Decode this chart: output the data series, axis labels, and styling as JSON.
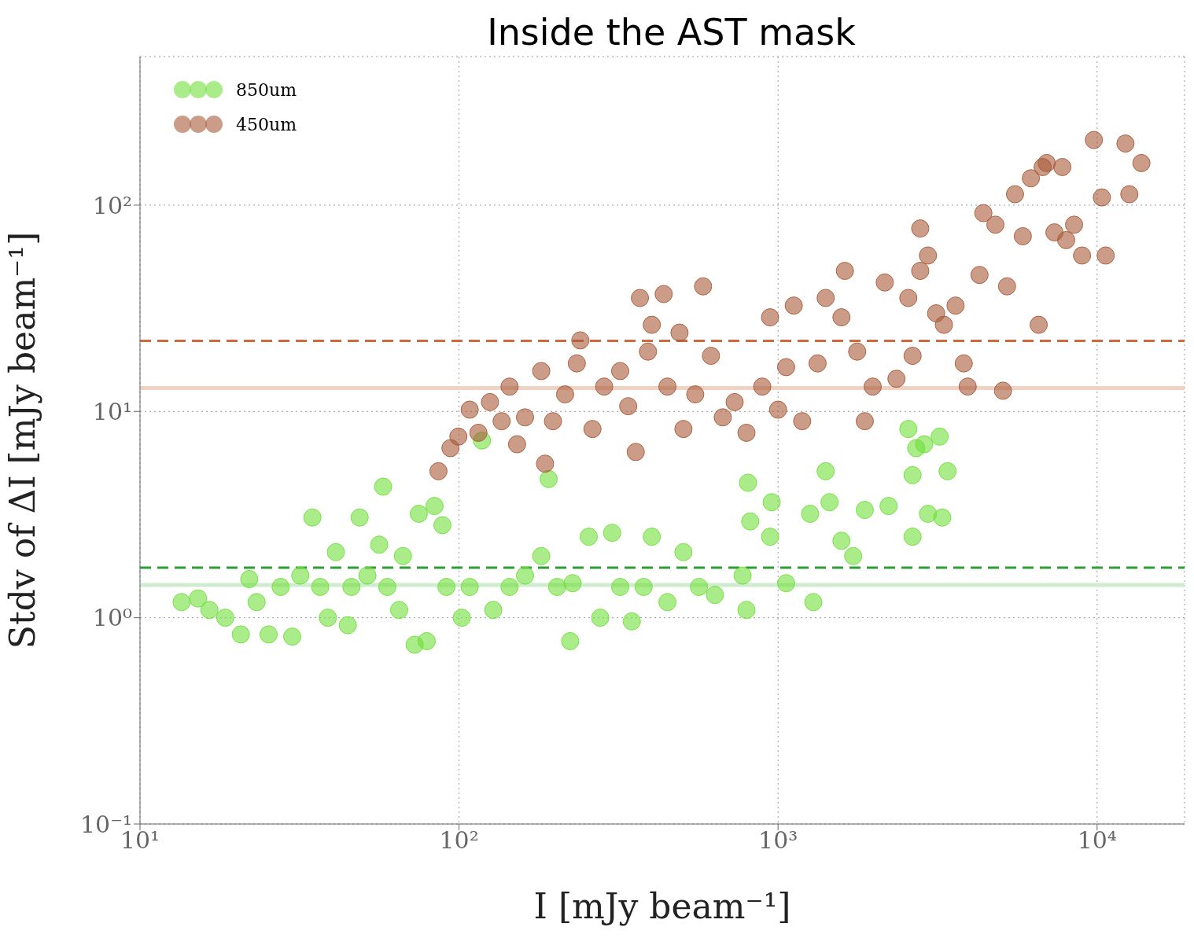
{
  "chart_data": {
    "type": "scatter",
    "title": "Inside the AST mask",
    "xlabel": "I [mJy beam⁻¹]",
    "ylabel": "Stdv of ΔI [mJy beam⁻¹]",
    "log": "xy",
    "grid": true,
    "legend": "top left",
    "marker": "circle",
    "xlim": [
      10,
      18800
    ],
    "ylim": [
      0.1,
      525
    ],
    "xticks": [
      {
        "value": 10,
        "label": "10¹"
      },
      {
        "value": 100,
        "label": "10²"
      },
      {
        "value": 1000,
        "label": "10³"
      },
      {
        "value": 10000,
        "label": "10⁴"
      }
    ],
    "yticks": [
      {
        "value": 0.1,
        "label": "10⁻¹"
      },
      {
        "value": 1,
        "label": "10⁰"
      },
      {
        "value": 10,
        "label": "10¹"
      },
      {
        "value": 100,
        "label": "10²"
      }
    ],
    "ref_lines": [
      {
        "axis": "y",
        "value": 22,
        "color": "#d0683e",
        "line_style": "dashed"
      },
      {
        "axis": "y",
        "value": 13,
        "color": "#f0d2c2",
        "line_style": "solid"
      },
      {
        "axis": "y",
        "value": 1.75,
        "color": "#2f9e35",
        "line_style": "dashed"
      },
      {
        "axis": "y",
        "value": 1.44,
        "color": "#cfeccf",
        "line_style": "solid"
      }
    ],
    "series": [
      {
        "name": "850um",
        "color": "#6fe03a",
        "x": [
          13.5,
          15.2,
          16.5,
          18.5,
          20.7,
          22,
          23.2,
          25.3,
          27.6,
          30,
          31.8,
          34.7,
          36.7,
          38.8,
          41.1,
          44.8,
          46,
          48.8,
          51.6,
          56.2,
          57.8,
          59.6,
          64.9,
          66.7,
          72.6,
          74.8,
          79.2,
          83.8,
          88.7,
          91.3,
          102,
          108,
          118,
          128,
          144,
          161,
          181,
          191,
          203,
          223,
          227,
          255,
          277,
          302,
          320,
          348,
          379,
          402,
          450,
          505,
          565,
          634,
          774,
          796,
          805,
          818,
          944,
          955,
          1060,
          1290,
          1260,
          1410,
          1450,
          1580,
          1720,
          1870,
          2220,
          2560,
          2640,
          2710,
          2870,
          2950,
          2640,
          3210,
          3270,
          3400
        ],
        "values": [
          1.19,
          1.24,
          1.09,
          1.0,
          0.83,
          1.54,
          1.19,
          0.83,
          1.41,
          0.81,
          1.6,
          3.06,
          1.41,
          1.0,
          2.08,
          0.92,
          1.41,
          3.06,
          1.6,
          2.26,
          4.32,
          1.41,
          1.09,
          1.99,
          0.74,
          3.19,
          0.77,
          3.48,
          2.81,
          1.41,
          1.0,
          1.41,
          7.23,
          1.09,
          1.41,
          1.6,
          1.99,
          4.7,
          1.41,
          0.77,
          1.47,
          2.47,
          1.0,
          2.58,
          1.41,
          0.96,
          1.41,
          2.47,
          1.19,
          2.08,
          1.41,
          1.29,
          1.6,
          1.09,
          4.51,
          2.93,
          2.47,
          3.63,
          1.47,
          1.19,
          3.19,
          5.13,
          3.63,
          2.36,
          1.99,
          3.33,
          3.48,
          8.22,
          4.91,
          6.64,
          6.93,
          3.19,
          2.47,
          7.55,
          3.06,
          5.13
        ]
      },
      {
        "name": "450um",
        "color": "#a85a38",
        "x": [
          86.2,
          94,
          99.5,
          108,
          115,
          125,
          136,
          144,
          152,
          161,
          181,
          186,
          197,
          215,
          234,
          240,
          262,
          285,
          320,
          339,
          358,
          369,
          391,
          402,
          438,
          450,
          491,
          505,
          550,
          582,
          616,
          671,
          731,
          796,
          892,
          944,
          1000,
          1060,
          1120,
          1190,
          1330,
          1410,
          1580,
          1620,
          1770,
          1870,
          1980,
          2160,
          2350,
          2560,
          2640,
          2790,
          2790,
          2950,
          3130,
          3310,
          3600,
          3820,
          3930,
          4280,
          4400,
          4800,
          5220,
          5530,
          5850,
          6200,
          6560,
          6750,
          6950,
          7350,
          7780,
          8000,
          8470,
          8970,
          9770,
          10350,
          10640,
          12270,
          12620,
          13770,
          5070
        ],
        "values": [
          5.13,
          6.64,
          7.55,
          10.2,
          7.88,
          11.1,
          8.97,
          13.2,
          6.93,
          9.36,
          15.7,
          5.58,
          8.97,
          12.1,
          17.1,
          22.1,
          8.22,
          13.2,
          15.7,
          10.6,
          6.36,
          35.5,
          19.5,
          26.3,
          37.1,
          13.2,
          24.1,
          8.22,
          12.1,
          40.4,
          18.6,
          9.36,
          11.1,
          7.88,
          13.2,
          28.6,
          10.2,
          16.4,
          32.6,
          8.97,
          17.1,
          35.5,
          28.6,
          48,
          19.5,
          8.97,
          13.2,
          42.2,
          14.4,
          35.5,
          18.6,
          48,
          77.1,
          57,
          29.9,
          26.3,
          32.6,
          17.1,
          13.2,
          45.9,
          91.5,
          80.4,
          40.4,
          113,
          70.7,
          135,
          26.3,
          153,
          160,
          73.8,
          153,
          67.7,
          80.4,
          57,
          207,
          109,
          57,
          199,
          113,
          160,
          12.6
        ]
      }
    ]
  }
}
